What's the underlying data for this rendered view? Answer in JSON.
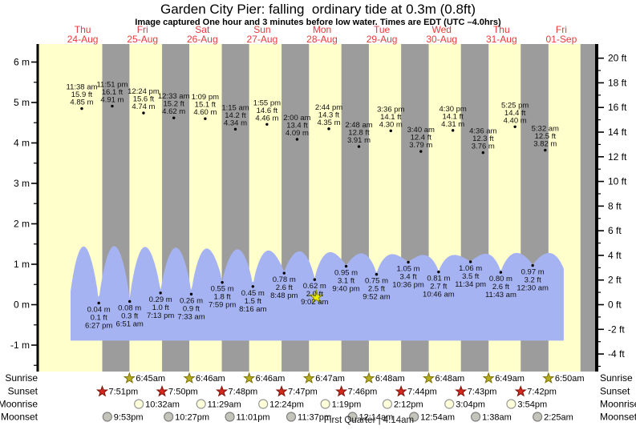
{
  "header": {
    "title": "Garden City Pier: falling  ordinary tide at 0.3m (0.8ft)",
    "subtitle": "Image captured One hour and 3 minutes before low water. Times are EDT (UTC –4.0hrs)"
  },
  "days": [
    {
      "name": "Thu",
      "date": "24-Aug"
    },
    {
      "name": "Fri",
      "date": "25-Aug"
    },
    {
      "name": "Sat",
      "date": "26-Aug"
    },
    {
      "name": "Sun",
      "date": "27-Aug"
    },
    {
      "name": "Mon",
      "date": "28-Aug"
    },
    {
      "name": "Tue",
      "date": "29-Aug"
    },
    {
      "name": "Wed",
      "date": "30-Aug"
    },
    {
      "name": "Thu",
      "date": "31-Aug"
    },
    {
      "name": "Fri",
      "date": "01-Sep"
    }
  ],
  "chart_data": {
    "type": "area",
    "y_axis_left": {
      "unit": "m",
      "ticks": [
        {
          "v": 6,
          "label": "6 m"
        },
        {
          "v": 5,
          "label": "5 m"
        },
        {
          "v": 4,
          "label": "4 m"
        },
        {
          "v": 3,
          "label": "3 m"
        },
        {
          "v": 2,
          "label": "2 m"
        },
        {
          "v": 1,
          "label": "1 m"
        },
        {
          "v": 0,
          "label": "0 m"
        },
        {
          "v": -1,
          "label": "-1 m"
        }
      ]
    },
    "y_axis_right": {
      "unit": "ft",
      "ticks": [
        {
          "v": 20,
          "label": "20 ft"
        },
        {
          "v": 18,
          "label": "18 ft"
        },
        {
          "v": 16,
          "label": "16 ft"
        },
        {
          "v": 14,
          "label": "14 ft"
        },
        {
          "v": 12,
          "label": "12 ft"
        },
        {
          "v": 10,
          "label": "10 ft"
        },
        {
          "v": 8,
          "label": "8 ft"
        },
        {
          "v": 6,
          "label": "6 ft"
        },
        {
          "v": 4,
          "label": "4 ft"
        },
        {
          "v": 2,
          "label": "2 ft"
        },
        {
          "v": 0,
          "label": "0 ft"
        },
        {
          "v": -2,
          "label": "-2 ft"
        },
        {
          "v": -4,
          "label": "-4 ft"
        }
      ]
    },
    "highs": [
      {
        "time": "11:38 am",
        "height_ft": "15.9 ft",
        "height_m": "4.85 m",
        "t": 11.633
      },
      {
        "time": "11:51 pm",
        "height_ft": "16.1 ft",
        "height_m": "4.91 m",
        "t": 23.85
      },
      {
        "time": "12:24 pm",
        "height_ft": "15.6 ft",
        "height_m": "4.74 m",
        "t": 36.4
      },
      {
        "time": "12:33 am",
        "height_ft": "15.2 ft",
        "height_m": "4.62 m",
        "t": 48.55
      },
      {
        "time": "1:09 pm",
        "height_ft": "15.1 ft",
        "height_m": "4.60 m",
        "t": 61.15
      },
      {
        "time": "1:15 am",
        "height_ft": "14.2 ft",
        "height_m": "4.34 m",
        "t": 73.25
      },
      {
        "time": "1:55 pm",
        "height_ft": "14.6 ft",
        "height_m": "4.46 m",
        "t": 85.917
      },
      {
        "time": "2:00 am",
        "height_ft": "13.4 ft",
        "height_m": "4.09 m",
        "t": 98.0
      },
      {
        "time": "2:44 pm",
        "height_ft": "14.3 ft",
        "height_m": "4.35 m",
        "t": 110.733
      },
      {
        "time": "2:48 am",
        "height_ft": "12.8 ft",
        "height_m": "3.91 m",
        "t": 122.8
      },
      {
        "time": "3:36 pm",
        "height_ft": "14.1 ft",
        "height_m": "4.30 m",
        "t": 135.6
      },
      {
        "time": "3:40 am",
        "height_ft": "12.4 ft",
        "height_m": "3.79 m",
        "t": 147.667
      },
      {
        "time": "4:30 pm",
        "height_ft": "14.1 ft",
        "height_m": "4.31 m",
        "t": 160.5
      },
      {
        "time": "4:36 am",
        "height_ft": "12.3 ft",
        "height_m": "3.76 m",
        "t": 172.6
      },
      {
        "time": "5:25 pm",
        "height_ft": "14.4 ft",
        "height_m": "4.40 m",
        "t": 185.417
      },
      {
        "time": "5:32 am",
        "height_ft": "12.5 ft",
        "height_m": "3.82 m",
        "t": 197.533
      }
    ],
    "lows": [
      {
        "height_m": "0.04 m",
        "height_ft": "0.1 ft",
        "time": "6:27 pm",
        "t": 18.45
      },
      {
        "height_m": "0.08 m",
        "height_ft": "0.3 ft",
        "time": "6:51 am",
        "t": 30.85
      },
      {
        "height_m": "0.29 m",
        "height_ft": "1.0 ft",
        "time": "7:13 pm",
        "t": 43.217
      },
      {
        "height_m": "0.26 m",
        "height_ft": "0.9 ft",
        "time": "7:33 am",
        "t": 55.55
      },
      {
        "height_m": "0.55 m",
        "height_ft": "1.8 ft",
        "time": "7:59 pm",
        "t": 67.983
      },
      {
        "height_m": "0.45 m",
        "height_ft": "1.5 ft",
        "time": "8:16 am",
        "t": 80.267
      },
      {
        "height_m": "0.78 m",
        "height_ft": "2.6 ft",
        "time": "8:48 pm",
        "t": 92.8
      },
      {
        "height_m": "0.62 m",
        "height_ft": "2.0 ft",
        "time": "9:02 am",
        "t": 105.033
      },
      {
        "height_m": "0.95 m",
        "height_ft": "3.1 ft",
        "time": "9:40 pm",
        "t": 117.667
      },
      {
        "height_m": "0.75 m",
        "height_ft": "2.5 ft",
        "time": "9:52 am",
        "t": 129.867
      },
      {
        "height_m": "1.05 m",
        "height_ft": "3.4 ft",
        "time": "10:36 pm",
        "t": 142.6
      },
      {
        "height_m": "0.81 m",
        "height_ft": "2.7 ft",
        "time": "10:46 am",
        "t": 154.767
      },
      {
        "height_m": "1.06 m",
        "height_ft": "3.5 ft",
        "time": "11:34 pm",
        "t": 167.567
      },
      {
        "height_m": "0.80 m",
        "height_ft": "2.6 ft",
        "time": "11:43 am",
        "t": 179.717
      },
      {
        "height_m": "0.97 m",
        "height_ft": "3.2 ft",
        "time": "12:30 am",
        "t": 192.5
      }
    ],
    "curve": {
      "lead_low": {
        "t": 6.3,
        "m": -0.2
      },
      "tail_low": {
        "t": 205.6,
        "m": 0.75
      },
      "peaks_m": [
        1.44,
        1.45,
        1.43,
        1.41,
        1.39,
        1.37,
        1.34,
        1.32,
        1.3,
        1.27,
        1.25,
        1.23,
        1.23,
        1.26,
        1.28,
        1.28
      ],
      "start_t": 7.14,
      "end_t": 204.98,
      "base_m": -0.89
    },
    "marker": {
      "t": 105.03,
      "m": 0.19
    },
    "final_night_start_t": 211.68
  },
  "astro": {
    "rows": [
      {
        "key": "sunrise",
        "label": "Sunrise",
        "icon": "sunrise-star-icon",
        "events": [
          {
            "time": "6:45am",
            "t": 30.75
          },
          {
            "time": "6:46am",
            "t": 54.77
          },
          {
            "time": "6:46am",
            "t": 78.77
          },
          {
            "time": "6:47am",
            "t": 102.78
          },
          {
            "time": "6:48am",
            "t": 126.8
          },
          {
            "time": "6:48am",
            "t": 150.8
          },
          {
            "time": "6:49am",
            "t": 174.82
          },
          {
            "time": "6:50am",
            "t": 198.83
          }
        ]
      },
      {
        "key": "sunset",
        "label": "Sunset",
        "icon": "sunset-star-icon",
        "events": [
          {
            "time": "7:51pm",
            "t": 19.85
          },
          {
            "time": "7:50pm",
            "t": 43.83
          },
          {
            "time": "7:48pm",
            "t": 67.8
          },
          {
            "time": "7:47pm",
            "t": 91.78
          },
          {
            "time": "7:46pm",
            "t": 115.77
          },
          {
            "time": "7:44pm",
            "t": 139.73
          },
          {
            "time": "7:43pm",
            "t": 163.72
          },
          {
            "time": "7:42pm",
            "t": 187.7
          }
        ]
      },
      {
        "key": "moonrise",
        "label": "Moonrise",
        "icon": "moonrise-circle-icon",
        "events": [
          {
            "time": "10:32am",
            "t": 34.53
          },
          {
            "time": "11:29am",
            "t": 59.48
          },
          {
            "time": "12:24pm",
            "t": 84.4
          },
          {
            "time": "1:19pm",
            "t": 109.32
          },
          {
            "time": "2:12pm",
            "t": 134.2
          },
          {
            "time": "3:04pm",
            "t": 159.07
          },
          {
            "time": "3:54pm",
            "t": 183.9
          }
        ]
      },
      {
        "key": "moonset",
        "label": "Moonset",
        "icon": "moonset-circle-icon",
        "events": [
          {
            "time": "9:53pm",
            "t": 21.88
          },
          {
            "time": "10:27pm",
            "t": 46.45
          },
          {
            "time": "11:01pm",
            "t": 71.02
          },
          {
            "time": "11:37pm",
            "t": 95.62
          },
          {
            "time": "12:14am",
            "t": 120.23
          },
          {
            "time": "12:54am",
            "t": 144.9
          },
          {
            "time": "1:38am",
            "t": 169.63
          },
          {
            "time": "2:25am",
            "t": 194.42
          }
        ]
      }
    ],
    "moon_phase": "First Quarter | 4:14am"
  },
  "colors": {
    "plot_day": "#ffffcc",
    "plot_night": "#9c9c9c",
    "tide_fill": "#a6b3f2",
    "day_label": "#e73b3b",
    "axis": "#000000",
    "annotation_text": "#111111",
    "sunrise_icon": "#b4ad20",
    "sunrise_icon_edge": "#7d7106",
    "sunset_icon": "#d3291c",
    "sunset_icon_edge": "#7c0f08",
    "moonrise_icon": "#ffffd9",
    "moonrise_icon_edge": "#999999",
    "moonset_icon": "#c4c4bb",
    "moonset_icon_edge": "#808080",
    "marker": "#ebeb00",
    "marker_edge": "#8f8f00"
  }
}
